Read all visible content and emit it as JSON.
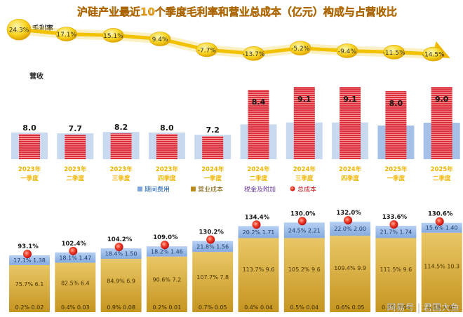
{
  "chart_data": [
    {
      "type": "line",
      "title": "沪硅产业最近10个季度毛利率和营业总成本（亿元）构成与占营收比",
      "ylabel": "毛利率",
      "values": [
        "24.3%",
        "17.1%",
        "15.1%",
        "9.4%",
        "-7.7%",
        "-13.7%",
        "-5.2%",
        "-9.4%",
        "-11.5%",
        "-14.5%"
      ],
      "numeric": [
        24.3,
        17.1,
        15.1,
        9.4,
        -7.7,
        -13.7,
        -5.2,
        -9.4,
        -11.5,
        -14.5
      ]
    },
    {
      "type": "bar",
      "ylabel": "营收",
      "categories": [
        [
          "2023年",
          "一季度"
        ],
        [
          "2023年",
          "二季度"
        ],
        [
          "2023年",
          "三季度"
        ],
        [
          "2023年",
          "四季度"
        ],
        [
          "2024年",
          "一季度"
        ],
        [
          "2024年",
          "二季度"
        ],
        [
          "2024年",
          "三季度"
        ],
        [
          "2024年",
          "四季度"
        ],
        [
          "2025年",
          "一季度"
        ],
        [
          "2025年",
          "二季度"
        ]
      ],
      "revenue": [
        "8.0",
        "7.7",
        "8.2",
        "8.0",
        "7.2",
        "8.4",
        "9.1",
        "9.1",
        "8.0",
        "9.0"
      ],
      "revenue_num": [
        8.0,
        7.7,
        8.2,
        8.0,
        7.2,
        8.4,
        9.1,
        9.1,
        8.0,
        9.0
      ],
      "total_cost_num": [
        6.1,
        6.4,
        6.9,
        7.2,
        7.8,
        9.6,
        9.6,
        9.9,
        9.6,
        10.3
      ]
    },
    {
      "type": "bar",
      "legend": [
        "期间费用",
        "营业成本",
        "税金及附加",
        "总成本"
      ],
      "total_cost_ratio": [
        "93.1%",
        "102.4%",
        "104.2%",
        "109.0%",
        "130.2%",
        "134.4%",
        "130.0%",
        "132.0%",
        "133.6%",
        "130.6%"
      ],
      "period_expense": [
        [
          "17.1%",
          "1.38"
        ],
        [
          "18.1%",
          "1.47"
        ],
        [
          "18.4%",
          "1.50"
        ],
        [
          "18.2%",
          "1.46"
        ],
        [
          "21.8%",
          "1.56"
        ],
        [
          "20.2%",
          "1.71"
        ],
        [
          "24.5%",
          "2.21"
        ],
        [
          "22.0%",
          "2.00"
        ],
        [
          "21.7%",
          "1.74"
        ],
        [
          "15.6%",
          "1.40"
        ]
      ],
      "operating_cost": [
        [
          "75.7%",
          "6.1"
        ],
        [
          "82.5%",
          "6.4"
        ],
        [
          "84.9%",
          "6.9"
        ],
        [
          "90.6%",
          "7.2"
        ],
        [
          "107.7%",
          "7.8"
        ],
        [
          "113.7%",
          "9.6"
        ],
        [
          "105.2%",
          "9.6"
        ],
        [
          "109.4%",
          "9.9"
        ],
        [
          "111.5%",
          "9.6"
        ],
        [
          "114.5%",
          "10.3"
        ]
      ],
      "taxes": [
        [
          "0.2%",
          "0.02"
        ],
        [
          "0.4%",
          "0.03"
        ],
        [
          "0.9%",
          "0.08"
        ],
        [
          "0.2%",
          "0.01"
        ],
        [
          "0.7%",
          "0.05"
        ],
        [
          "0.4%",
          "0.04"
        ],
        [
          "0.5%",
          "0.04"
        ],
        [
          "0.6%",
          "0.05"
        ],
        [
          "0.5%",
          "0.04"
        ],
        [
          "0.6%",
          "0.05"
        ]
      ],
      "period_expense_num": [
        1.38,
        1.47,
        1.5,
        1.46,
        1.56,
        1.71,
        2.21,
        2.0,
        1.74,
        1.4
      ],
      "operating_cost_num": [
        6.1,
        6.4,
        6.9,
        7.2,
        7.8,
        9.6,
        9.6,
        9.9,
        9.6,
        10.3
      ]
    }
  ],
  "watermark": "网易号 | 君国大鱼",
  "colors": {
    "title": "#f0a30a",
    "line": "#f5c400",
    "revenue_bar": "#d9303a",
    "revenue_back": "#c5d6ee",
    "period_expense": "#8fb4e3",
    "operating_cost": "#d4aa3c",
    "total_cost_dot": "#e8262b",
    "category_label": "#f0b400"
  }
}
